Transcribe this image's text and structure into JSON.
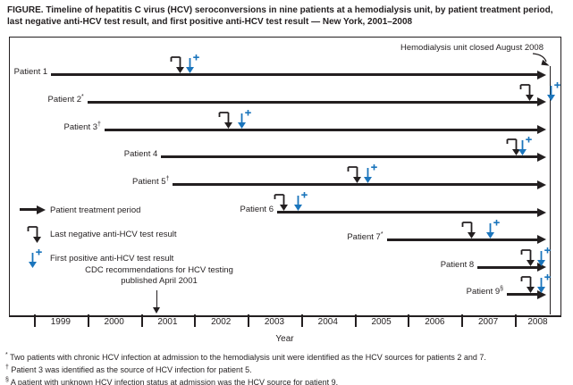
{
  "title": "FIGURE. Timeline of hepatitis C virus (HCV) seroconversions in nine patients at a hemodialysis unit, by patient treatment period, last negative anti-HCV test result, and first positive anti-HCV test result — New York, 2001–2008",
  "colors": {
    "ink": "#231f20",
    "positive_blue": "#1b75bc"
  },
  "annotations": {
    "closure": "Hemodialysis unit closed August 2008",
    "cdc_line1": "CDC recommendations for HCV testing",
    "cdc_line2": "published April 2001"
  },
  "legend": [
    {
      "symbol": "treatment-period-arrow",
      "label": "Patient treatment period"
    },
    {
      "symbol": "last-negative-marker",
      "label": "Last negative anti-HCV test result"
    },
    {
      "symbol": "first-positive-marker",
      "label": "First positive anti-HCV test result"
    }
  ],
  "x_axis_label": "Year",
  "footnotes": [
    {
      "mark": "*",
      "text": "Two patients with chronic HCV infection at admission to the hemodialysis unit were identified as the HCV sources for patients 2 and 7."
    },
    {
      "mark": "†",
      "text": "Patient 3 was identified as the source of HCV infection for patient 5."
    },
    {
      "mark": "§",
      "text": "A patient with unknown HCV infection status at admission was the HCV source for patient 9."
    }
  ],
  "chart_data": {
    "type": "timeline",
    "title": "Timeline of hepatitis C virus (HCV) seroconversions in nine patients at a hemodialysis unit — New York, 2001–2008",
    "xlabel": "Year",
    "x_ticks": [
      1999,
      2000,
      2001,
      2002,
      2003,
      2004,
      2005,
      2006,
      2007,
      2008
    ],
    "x_range_years": [
      1998.5,
      2008.85
    ],
    "unit_closure_year": 2008.65,
    "treatment_end_year": 2008.6,
    "cdc_recommendation_year": 2001.3,
    "patients": [
      {
        "label": "Patient 1",
        "footnote_mark": "",
        "treatment_start": 1999.32,
        "last_negative": 2001.74,
        "first_positive": 2001.93
      },
      {
        "label": "Patient 2",
        "footnote_mark": "*",
        "treatment_start": 2000.0,
        "last_negative": 2008.28,
        "first_positive": 2008.68
      },
      {
        "label": "Patient 3",
        "footnote_mark": "†",
        "treatment_start": 2000.32,
        "last_negative": 2002.65,
        "first_positive": 2002.9
      },
      {
        "label": "Patient 4",
        "footnote_mark": "",
        "treatment_start": 2001.38,
        "last_negative": 2008.03,
        "first_positive": 2008.15
      },
      {
        "label": "Patient 5",
        "footnote_mark": "†",
        "treatment_start": 2001.6,
        "last_negative": 2005.05,
        "first_positive": 2005.25
      },
      {
        "label": "Patient 6",
        "footnote_mark": "",
        "treatment_start": 2003.55,
        "last_negative": 2003.68,
        "first_positive": 2003.95
      },
      {
        "label": "Patient 7",
        "footnote_mark": "*",
        "treatment_start": 2005.6,
        "last_negative": 2007.2,
        "first_positive": 2007.55
      },
      {
        "label": "Patient 8",
        "footnote_mark": "",
        "treatment_start": 2007.3,
        "last_negative": 2008.3,
        "first_positive": 2008.5
      },
      {
        "label": "Patient 9",
        "footnote_mark": "§",
        "treatment_start": 2007.85,
        "last_negative": 2008.3,
        "first_positive": 2008.5
      }
    ]
  }
}
